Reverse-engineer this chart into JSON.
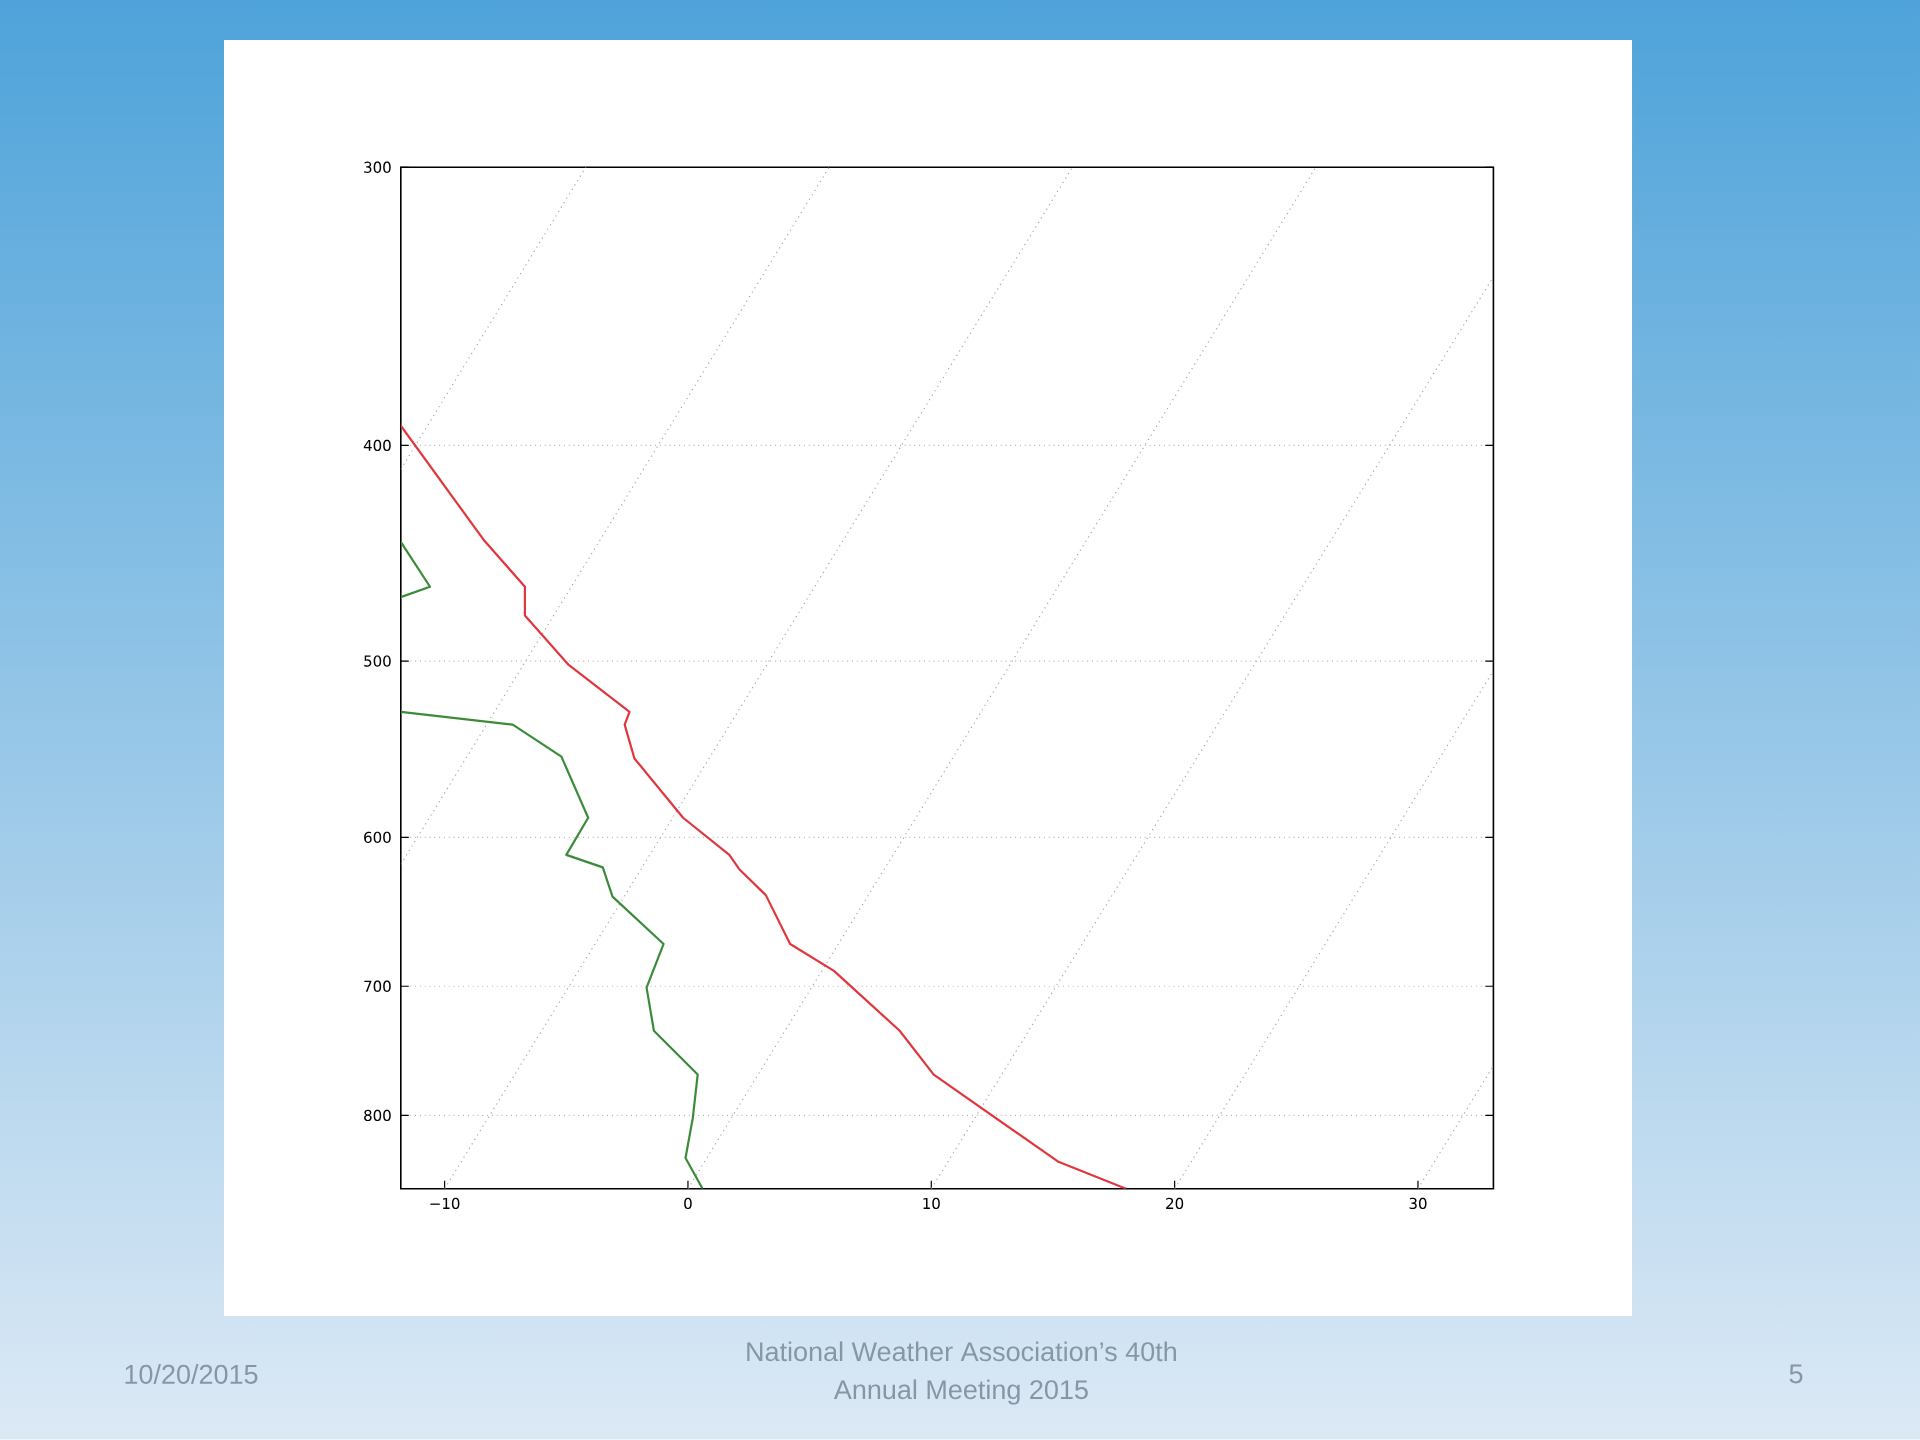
{
  "chart_data": {
    "type": "line",
    "log": "y",
    "grid": "y",
    "xlim": [
      -11.8,
      33.1
    ],
    "ylim": [
      863,
      300
    ],
    "xticks": [
      {
        "value": -10,
        "label": "−10"
      },
      0,
      10,
      20,
      30
    ],
    "yticks": [
      300,
      400,
      500,
      600,
      700,
      800
    ],
    "series": [
      {
        "color": "#a6a6a6",
        "line_style": "dotted",
        "x": [
          -11.8,
          -4.2
        ],
        "values": [
          410,
          300
        ]
      },
      {
        "color": "#a6a6a6",
        "line_style": "dotted",
        "x": [
          -11.8,
          5.8
        ],
        "values": [
          617,
          300
        ]
      },
      {
        "color": "#a6a6a6",
        "line_style": "dotted",
        "x": [
          -10,
          15.8
        ],
        "values": [
          863,
          300
        ]
      },
      {
        "color": "#a6a6a6",
        "line_style": "dotted",
        "x": [
          0,
          25.8
        ],
        "values": [
          863,
          300
        ]
      },
      {
        "color": "#a6a6a6",
        "line_style": "dotted",
        "x": [
          10,
          33.1
        ],
        "values": [
          863,
          336
        ]
      },
      {
        "color": "#a6a6a6",
        "line_style": "dotted",
        "x": [
          20,
          33.1
        ],
        "values": [
          863,
          505
        ]
      },
      {
        "color": "#a6a6a6",
        "line_style": "dotted",
        "x": [
          30,
          33.1
        ],
        "values": [
          863,
          760
        ]
      },
      {
        "color": "#e0363e",
        "x": [
          -11.8,
          -8.4,
          -6.7,
          -6.7,
          -4.9,
          -2.4,
          -2.6,
          -2.2,
          -0.2,
          1.7,
          2.1,
          3.2,
          4.2,
          6.0,
          8.7,
          10.1,
          15.2,
          18.0
        ],
        "values": [
          392,
          441,
          463,
          477,
          502,
          527,
          534,
          553,
          588,
          611,
          620,
          637,
          670,
          689,
          733,
          767,
          839,
          863
        ]
      },
      {
        "color": "#3a8c3a",
        "x": [
          -11.8,
          -10.6,
          -11.8,
          null,
          -11.8,
          -7.2,
          -5.2,
          -4.1,
          -5.0,
          -3.5,
          -3.1,
          -1.0,
          -1.7,
          -1.4,
          0.4,
          0.2,
          -0.1,
          0.6
        ],
        "values": [
          442,
          463,
          468,
          null,
          527,
          534,
          552,
          588,
          611,
          619,
          638,
          670,
          701,
          733,
          767,
          802,
          836,
          863
        ]
      }
    ],
    "annotations": [
      "10/20/2015",
      "National Weather Association’s 40th Annual Meeting 2015",
      "5"
    ]
  }
}
